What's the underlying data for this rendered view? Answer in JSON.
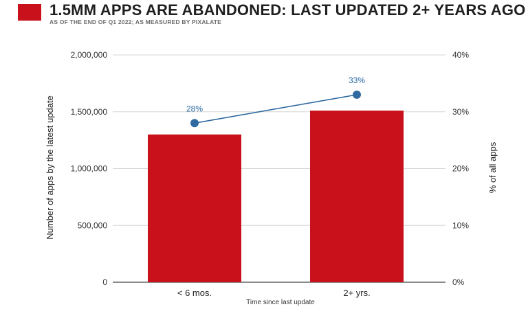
{
  "header": {
    "title": "1.5MM APPS ARE ABANDONED: LAST UPDATED 2+ YEARS AGO",
    "subtitle": "AS OF THE END OF Q1 2022; AS MEASURED BY PIXALATE"
  },
  "colors": {
    "brand": "#c8111a",
    "bar": "#c8111a",
    "line": "#2f6aa0",
    "point": "#2f6aa0",
    "label": "#2b6aa3"
  },
  "chart_data": {
    "type": "bar",
    "categories": [
      "< 6 mos.",
      "2+ yrs."
    ],
    "series": [
      {
        "values": [
          1300000,
          1510000
        ],
        "axis": "left",
        "kind": "bar"
      },
      {
        "values": [
          28,
          33
        ],
        "axis": "right",
        "kind": "line",
        "data_labels": [
          "28%",
          "33%"
        ]
      }
    ],
    "xlabel": "Time since last update",
    "ylabel": "Number of apps by the latest update",
    "y2label": "% of all apps",
    "ylim": [
      0,
      2000000
    ],
    "y2lim": [
      0,
      40
    ],
    "yticks": [
      "0",
      "500,000",
      "1,000,000",
      "1,500,000",
      "2,000,000"
    ],
    "y2ticks": [
      "0%",
      "10%",
      "20%",
      "30%",
      "40%"
    ],
    "grid": true,
    "legend": "none"
  }
}
